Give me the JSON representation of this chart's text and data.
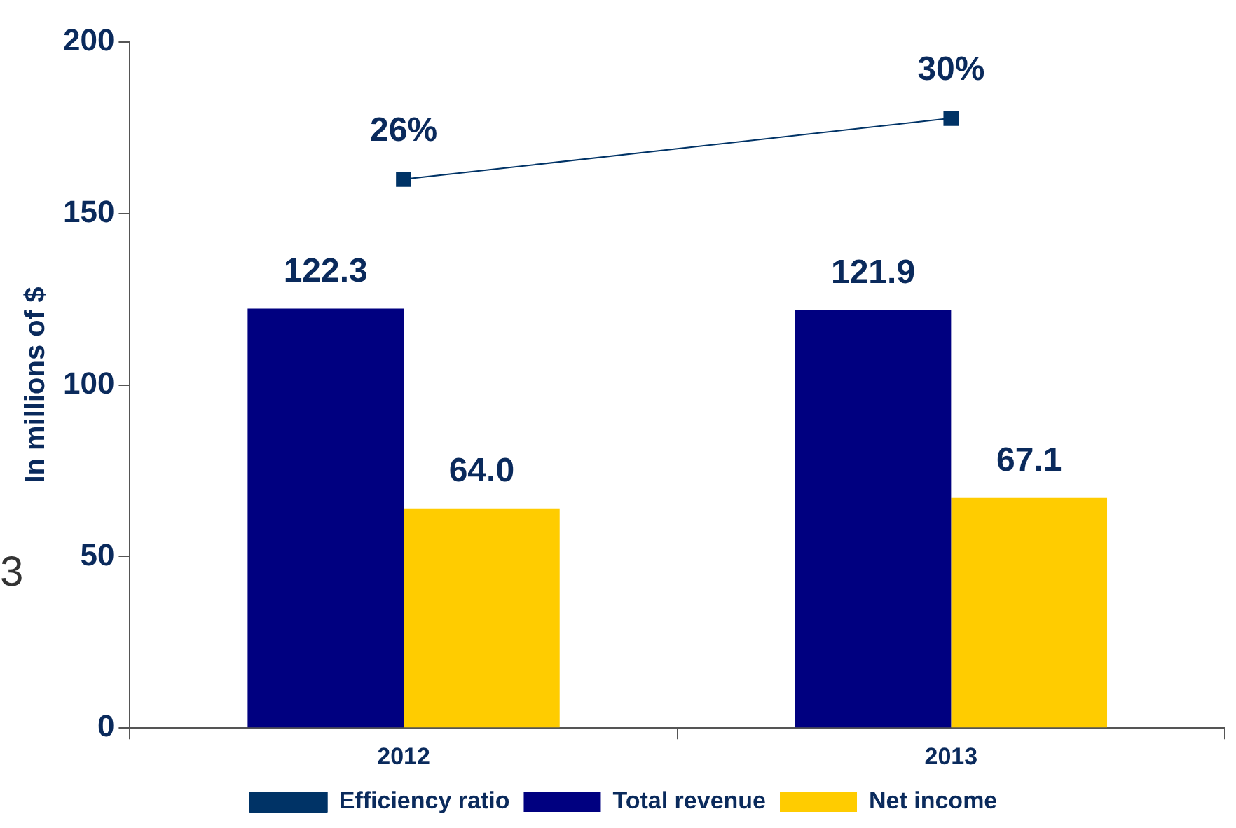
{
  "chart_data": {
    "type": "bar",
    "ylabel": "In millions of $",
    "categories": [
      "2012",
      "2013"
    ],
    "series": [
      {
        "name": "Total revenue",
        "color": "#000080",
        "values": [
          122.3,
          121.9
        ],
        "value_labels": [
          "122.3",
          "121.9"
        ]
      },
      {
        "name": "Net income",
        "color": "#ffcc00",
        "values": [
          64.0,
          67.1
        ],
        "value_labels": [
          "64.0",
          "67.1"
        ]
      },
      {
        "name": "Efficiency ratio",
        "type": "line",
        "axis": "y2",
        "color": "#003366",
        "values": [
          26,
          30
        ],
        "marker": "square",
        "value_labels": [
          "26%",
          "30%"
        ]
      }
    ],
    "ylim": [
      0,
      200
    ],
    "yticks": [
      0,
      50,
      100,
      150,
      200
    ],
    "grid": false,
    "legend": "bottom",
    "annotations": [
      "3"
    ]
  }
}
